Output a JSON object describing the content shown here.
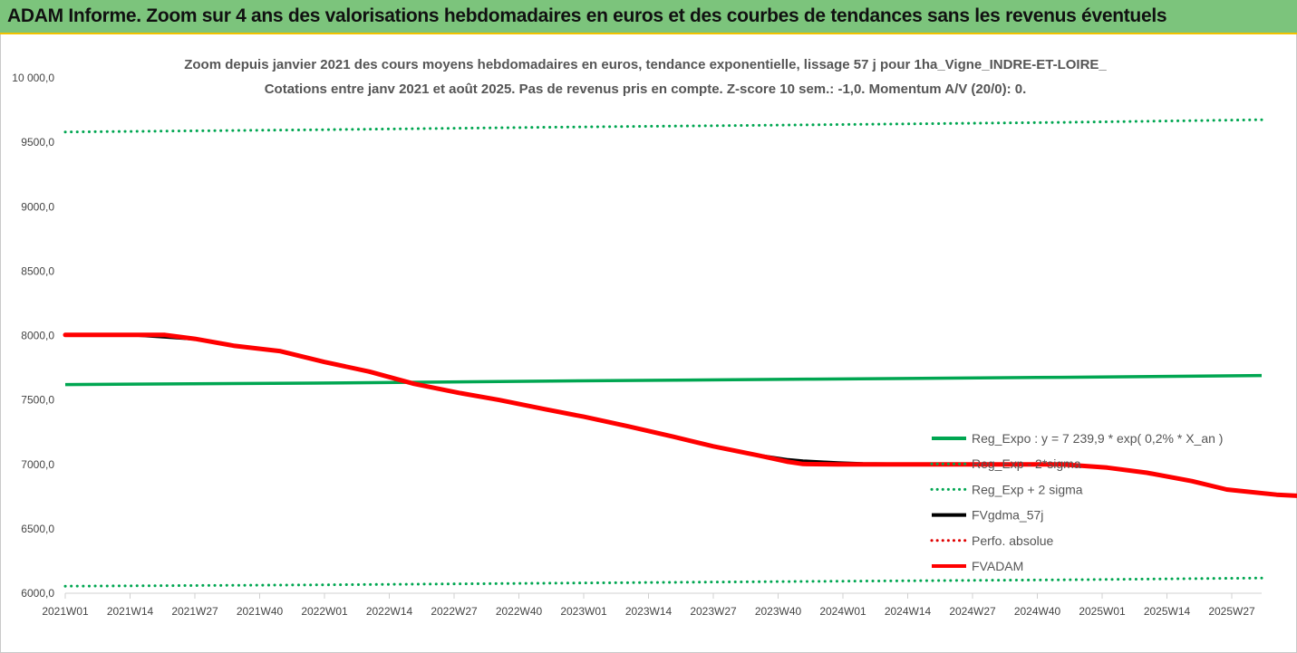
{
  "banner": {
    "title": "ADAM Informe. Zoom sur 4 ans des valorisations hebdomadaires en euros et des courbes de tendances sans les revenus éventuels"
  },
  "chart_data": {
    "type": "line",
    "title": "Zoom depuis janvier 2021 des cours moyens hebdomadaires en euros, tendance exponentielle, lissage 57 j pour 1ha_Vigne_INDRE-ET-LOIRE_",
    "subtitle": "Cotations entre janv 2021 et août 2025.  Pas de revenus pris en compte.  Z-score 10 sem.: -1,0. Momentum A/V (20/0): 0.",
    "xlabel": "",
    "ylabel": "",
    "ylim": [
      6000,
      10000
    ],
    "y_ticks": [
      "6000,0",
      "6500,0",
      "7000,0",
      "7500,0",
      "8000,0",
      "8500,0",
      "9000,0",
      "9500,0",
      "10 000,0"
    ],
    "x_tick_labels": [
      "2021W01",
      "2021W14",
      "2021W27",
      "2021W40",
      "2022W01",
      "2022W14",
      "2022W27",
      "2022W40",
      "2023W01",
      "2023W14",
      "2023W27",
      "2023W40",
      "2024W01",
      "2024W14",
      "2024W27",
      "2024W40",
      "2025W01",
      "2025W14",
      "2025W27"
    ],
    "x_weeks_total": 240,
    "grid": false,
    "legend_position": "right",
    "series": [
      {
        "name": "Reg_Expo : y = 7 239,9 * exp( 0,2% *  X_an )",
        "style": "solid",
        "color": "#00a651",
        "points": [
          [
            0,
            7620
          ],
          [
            50,
            7631
          ],
          [
            100,
            7648
          ],
          [
            150,
            7662
          ],
          [
            200,
            7676
          ],
          [
            240,
            7690
          ]
        ]
      },
      {
        "name": "Reg_Exp - 2*sigma",
        "style": "dotted",
        "color": "#00a651",
        "points": [
          [
            0,
            6055
          ],
          [
            50,
            6065
          ],
          [
            100,
            6079
          ],
          [
            150,
            6092
          ],
          [
            200,
            6104
          ],
          [
            240,
            6118
          ]
        ]
      },
      {
        "name": "Reg_Exp + 2 sigma",
        "style": "dotted",
        "color": "#00a651",
        "points": [
          [
            0,
            9580
          ],
          [
            50,
            9597
          ],
          [
            100,
            9618
          ],
          [
            150,
            9636
          ],
          [
            200,
            9655
          ],
          [
            240,
            9675
          ]
        ]
      },
      {
        "name": "FVgdma_57j",
        "style": "solid",
        "color": "#000000",
        "points": [
          [
            0,
            8005
          ],
          [
            14,
            8005
          ],
          [
            20,
            7990
          ],
          [
            26,
            7975
          ],
          [
            34,
            7920
          ],
          [
            43,
            7880
          ],
          [
            52,
            7795
          ],
          [
            61,
            7720
          ],
          [
            70,
            7625
          ],
          [
            79,
            7555
          ],
          [
            87,
            7500
          ],
          [
            96,
            7430
          ],
          [
            104,
            7370
          ],
          [
            113,
            7295
          ],
          [
            122,
            7215
          ],
          [
            130,
            7140
          ],
          [
            139,
            7070
          ],
          [
            145,
            7035
          ],
          [
            148,
            7025
          ],
          [
            155,
            7010
          ],
          [
            160,
            7003
          ],
          [
            170,
            7000
          ],
          [
            200,
            7000
          ],
          [
            209,
            6975
          ],
          [
            217,
            6935
          ],
          [
            226,
            6870
          ],
          [
            233,
            6805
          ],
          [
            243,
            6765
          ],
          [
            250,
            6752
          ],
          [
            260,
            6750
          ]
        ]
      },
      {
        "name": "Perfo. absolue",
        "style": "dotted",
        "color": "#e00000",
        "points": []
      },
      {
        "name": "FVADAM",
        "style": "solid",
        "color": "#ff0000",
        "points": [
          [
            0,
            8005
          ],
          [
            20,
            8005
          ],
          [
            26,
            7975
          ],
          [
            34,
            7920
          ],
          [
            43,
            7880
          ],
          [
            52,
            7795
          ],
          [
            61,
            7720
          ],
          [
            70,
            7625
          ],
          [
            79,
            7555
          ],
          [
            87,
            7500
          ],
          [
            96,
            7430
          ],
          [
            104,
            7370
          ],
          [
            113,
            7295
          ],
          [
            122,
            7215
          ],
          [
            130,
            7140
          ],
          [
            139,
            7070
          ],
          [
            145,
            7020
          ],
          [
            148,
            7003
          ],
          [
            155,
            7000
          ],
          [
            170,
            7000
          ],
          [
            200,
            7000
          ],
          [
            209,
            6975
          ],
          [
            217,
            6935
          ],
          [
            226,
            6870
          ],
          [
            233,
            6805
          ],
          [
            243,
            6765
          ],
          [
            250,
            6750
          ],
          [
            260,
            6745
          ]
        ]
      }
    ]
  }
}
